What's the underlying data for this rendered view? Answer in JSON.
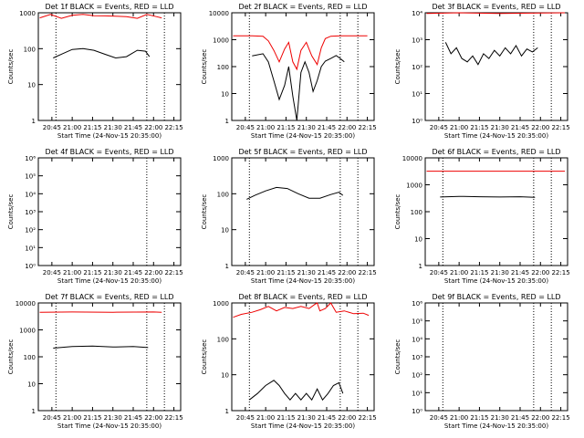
{
  "chart_data": [
    {
      "type": "line",
      "title": "Det 1f BLACK = Events, RED = LLD",
      "xlabel": "Start Time (24-Nov-15 20:35:00)",
      "ylabel": "Counts/sec",
      "y_scale": "log",
      "ylim": [
        1,
        1000
      ],
      "yticklabels": [
        "1",
        "10",
        "100",
        "1000"
      ],
      "xlim": [
        "20:35",
        "22:20"
      ],
      "xticklabels": [
        "20:45",
        "21:00",
        "21:15",
        "21:30",
        "21:45",
        "22:00",
        "22:15"
      ],
      "vertical_markers": [
        "20:48",
        "21:55",
        "22:08"
      ],
      "grid": false,
      "series": [
        {
          "color": "#000000",
          "x": [
            "20:46",
            "20:52",
            "21:00",
            "21:08",
            "21:16",
            "21:24",
            "21:32",
            "21:40",
            "21:48",
            "21:54",
            "21:57"
          ],
          "y": [
            55,
            70,
            95,
            100,
            90,
            70,
            55,
            60,
            90,
            85,
            60
          ]
        },
        {
          "color": "#ee0000",
          "x": [
            "20:36",
            "20:44",
            "20:52",
            "21:00",
            "21:08",
            "21:16",
            "21:24",
            "21:32",
            "21:40",
            "21:48",
            "21:55",
            "22:02",
            "22:06"
          ],
          "y": [
            720,
            900,
            700,
            850,
            900,
            830,
            820,
            800,
            780,
            700,
            900,
            780,
            720
          ]
        }
      ]
    },
    {
      "type": "line",
      "title": "Det 2f BLACK = Events, RED = LLD",
      "xlabel": "Start Time (24-Nov-15 20:35:00)",
      "ylabel": "Counts/sec",
      "y_scale": "log",
      "ylim": [
        1,
        10000
      ],
      "yticklabels": [
        "1",
        "10",
        "100",
        "1000",
        "10000"
      ],
      "xlim": [
        "20:35",
        "22:20"
      ],
      "xticklabels": [
        "20:45",
        "21:00",
        "21:15",
        "21:30",
        "21:45",
        "22:00",
        "22:15"
      ],
      "vertical_markers": [
        "20:48",
        "21:55",
        "22:08"
      ],
      "grid": false,
      "series": [
        {
          "color": "#000000",
          "x": [
            "20:50",
            "20:58",
            "21:02",
            "21:06",
            "21:10",
            "21:14",
            "21:17",
            "21:20",
            "21:23",
            "21:26",
            "21:29",
            "21:32",
            "21:35",
            "21:38",
            "21:41",
            "21:44",
            "21:48",
            "21:52",
            "21:55",
            "21:58"
          ],
          "y": [
            250,
            300,
            150,
            30,
            6,
            20,
            100,
            8,
            1,
            60,
            150,
            60,
            12,
            30,
            100,
            160,
            200,
            260,
            200,
            150
          ]
        },
        {
          "color": "#ee0000",
          "x": [
            "20:36",
            "20:50",
            "20:58",
            "21:02",
            "21:06",
            "21:10",
            "21:14",
            "21:17",
            "21:20",
            "21:23",
            "21:26",
            "21:30",
            "21:34",
            "21:38",
            "21:41",
            "21:44",
            "21:48",
            "21:55",
            "22:05",
            "22:15"
          ],
          "y": [
            1400,
            1400,
            1350,
            900,
            400,
            150,
            450,
            800,
            150,
            80,
            400,
            800,
            250,
            120,
            500,
            1100,
            1350,
            1400,
            1400,
            1400
          ]
        }
      ]
    },
    {
      "type": "line",
      "title": "Det 3f BLACK = Events, RED = LLD",
      "xlabel": "Start Time (24-Nov-15 20:35:00)",
      "ylabel": "Counts/sec",
      "y_scale": "log",
      "ylim": [
        1,
        10000
      ],
      "yticklabels": [
        "10⁰",
        "10¹",
        "10²",
        "10³",
        "10⁴"
      ],
      "xlim": [
        "20:35",
        "22:20"
      ],
      "xticklabels": [
        "20:45",
        "21:00",
        "21:15",
        "21:30",
        "21:45",
        "22:00",
        "22:15"
      ],
      "vertical_markers": [
        "20:48",
        "21:55",
        "22:08"
      ],
      "grid": false,
      "series": [
        {
          "color": "#000000",
          "x": [
            "20:50",
            "20:54",
            "20:58",
            "21:02",
            "21:06",
            "21:10",
            "21:14",
            "21:18",
            "21:22",
            "21:26",
            "21:30",
            "21:34",
            "21:38",
            "21:42",
            "21:46",
            "21:50",
            "21:54",
            "21:58"
          ],
          "y": [
            800,
            300,
            500,
            200,
            150,
            250,
            120,
            300,
            200,
            400,
            250,
            500,
            300,
            600,
            250,
            450,
            350,
            500
          ]
        },
        {
          "color": "#ee0000",
          "x": [
            "20:36",
            "21:00",
            "21:30",
            "22:00",
            "22:18"
          ],
          "y": [
            9500,
            10000,
            9500,
            9800,
            10000
          ]
        }
      ]
    },
    {
      "type": "line",
      "title": "Det 4f BLACK = Events, RED = LLD",
      "xlabel": "Start Time (24-Nov-15 20:35:00)",
      "ylabel": "Counts/sec",
      "y_scale": "log",
      "ylim": [
        1,
        1000000
      ],
      "yticklabels": [
        "10⁰",
        "10¹",
        "10²",
        "10³",
        "10⁴",
        "10⁵",
        "10⁶"
      ],
      "xlim": [
        "20:35",
        "22:20"
      ],
      "xticklabels": [
        "20:45",
        "21:00",
        "21:15",
        "21:30",
        "21:45",
        "22:00",
        "22:15"
      ],
      "vertical_markers": [
        "21:55"
      ],
      "grid": false,
      "series": []
    },
    {
      "type": "line",
      "title": "Det 5f BLACK = Events, RED = LLD",
      "xlabel": "Start Time (24-Nov-15 20:35:00)",
      "ylabel": "Counts/sec",
      "y_scale": "log",
      "ylim": [
        1,
        1000
      ],
      "yticklabels": [
        "1",
        "10",
        "100",
        "1000"
      ],
      "xlim": [
        "20:35",
        "22:20"
      ],
      "xticklabels": [
        "20:45",
        "21:00",
        "21:15",
        "21:30",
        "21:45",
        "22:00",
        "22:15"
      ],
      "vertical_markers": [
        "20:48",
        "21:55",
        "22:08"
      ],
      "grid": false,
      "series": [
        {
          "color": "#000000",
          "x": [
            "20:46",
            "20:52",
            "21:00",
            "21:08",
            "21:16",
            "21:24",
            "21:32",
            "21:40",
            "21:48",
            "21:54",
            "21:57"
          ],
          "y": [
            70,
            90,
            120,
            150,
            140,
            100,
            75,
            75,
            95,
            110,
            90
          ]
        }
      ]
    },
    {
      "type": "line",
      "title": "Det 6f BLACK = Events, RED = LLD",
      "xlabel": "Start Time (24-Nov-15 20:35:00)",
      "ylabel": "Counts/sec",
      "y_scale": "log",
      "ylim": [
        1,
        10000
      ],
      "yticklabels": [
        "1",
        "10",
        "100",
        "1000",
        "10000"
      ],
      "xlim": [
        "20:35",
        "22:20"
      ],
      "xticklabels": [
        "20:45",
        "21:00",
        "21:15",
        "21:30",
        "21:45",
        "22:00",
        "22:15"
      ],
      "vertical_markers": [
        "20:48",
        "21:55",
        "22:08"
      ],
      "grid": false,
      "series": [
        {
          "color": "#000000",
          "x": [
            "20:46",
            "21:00",
            "21:15",
            "21:30",
            "21:45",
            "21:56"
          ],
          "y": [
            350,
            370,
            360,
            350,
            360,
            340
          ]
        },
        {
          "color": "#ee0000",
          "x": [
            "20:36",
            "21:00",
            "21:30",
            "22:00",
            "22:18"
          ],
          "y": [
            3200,
            3200,
            3200,
            3200,
            3200
          ]
        }
      ]
    },
    {
      "type": "line",
      "title": "Det 7f BLACK = Events, RED = LLD",
      "xlabel": "Start Time (24-Nov-15 20:35:00)",
      "ylabel": "Counts/sec",
      "y_scale": "log",
      "ylim": [
        1,
        10000
      ],
      "yticklabels": [
        "1",
        "10",
        "100",
        "1000",
        "10000"
      ],
      "xlim": [
        "20:35",
        "22:20"
      ],
      "xticklabels": [
        "20:45",
        "21:00",
        "21:15",
        "21:30",
        "21:45",
        "22:00",
        "22:15"
      ],
      "vertical_markers": [
        "20:48",
        "21:55",
        "22:08"
      ],
      "grid": false,
      "series": [
        {
          "color": "#000000",
          "x": [
            "20:46",
            "21:00",
            "21:15",
            "21:30",
            "21:45",
            "21:56"
          ],
          "y": [
            210,
            240,
            250,
            230,
            240,
            220
          ]
        },
        {
          "color": "#ee0000",
          "x": [
            "20:36",
            "21:00",
            "21:30",
            "22:00",
            "22:06"
          ],
          "y": [
            4500,
            4600,
            4500,
            4600,
            4500
          ]
        }
      ]
    },
    {
      "type": "line",
      "title": "Det 8f BLACK = Events, RED = LLD",
      "xlabel": "Start Time (24-Nov-15 20:35:00)",
      "ylabel": "Counts/sec",
      "y_scale": "log",
      "ylim": [
        1,
        1000
      ],
      "yticklabels": [
        "1",
        "10",
        "100",
        "1000"
      ],
      "xlim": [
        "20:35",
        "22:20"
      ],
      "xticklabels": [
        "20:45",
        "21:00",
        "21:15",
        "21:30",
        "21:45",
        "22:00",
        "22:15"
      ],
      "vertical_markers": [
        "20:48",
        "21:55",
        "22:08"
      ],
      "grid": false,
      "series": [
        {
          "color": "#000000",
          "x": [
            "20:48",
            "20:54",
            "21:00",
            "21:06",
            "21:10",
            "21:14",
            "21:18",
            "21:22",
            "21:26",
            "21:30",
            "21:34",
            "21:38",
            "21:42",
            "21:46",
            "21:50",
            "21:54",
            "21:57"
          ],
          "y": [
            2,
            3,
            5,
            7,
            5,
            3,
            2,
            3,
            2,
            3,
            2,
            4,
            2,
            3,
            5,
            6,
            3
          ]
        },
        {
          "color": "#ee0000",
          "x": [
            "20:36",
            "20:42",
            "20:50",
            "20:56",
            "21:02",
            "21:08",
            "21:14",
            "21:20",
            "21:26",
            "21:32",
            "21:36",
            "21:38",
            "21:40",
            "21:44",
            "21:48",
            "21:52",
            "21:58",
            "22:05",
            "22:12",
            "22:16"
          ],
          "y": [
            400,
            480,
            550,
            650,
            800,
            600,
            750,
            700,
            800,
            700,
            900,
            1000,
            600,
            700,
            1000,
            550,
            600,
            500,
            520,
            450
          ]
        }
      ]
    },
    {
      "type": "line",
      "title": "Det 9f BLACK = Events, RED = LLD",
      "xlabel": "Start Time (24-Nov-15 20:35:00)",
      "ylabel": "Counts/sec",
      "y_scale": "log",
      "ylim": [
        1,
        1000000
      ],
      "yticklabels": [
        "10⁰",
        "10¹",
        "10²",
        "10³",
        "10⁴",
        "10⁵",
        "10⁶"
      ],
      "xlim": [
        "20:35",
        "22:20"
      ],
      "xticklabels": [
        "20:45",
        "21:00",
        "21:15",
        "21:30",
        "21:45",
        "22:00",
        "22:15"
      ],
      "vertical_markers": [
        "20:48",
        "21:55",
        "22:08"
      ],
      "grid": false,
      "series": []
    }
  ]
}
